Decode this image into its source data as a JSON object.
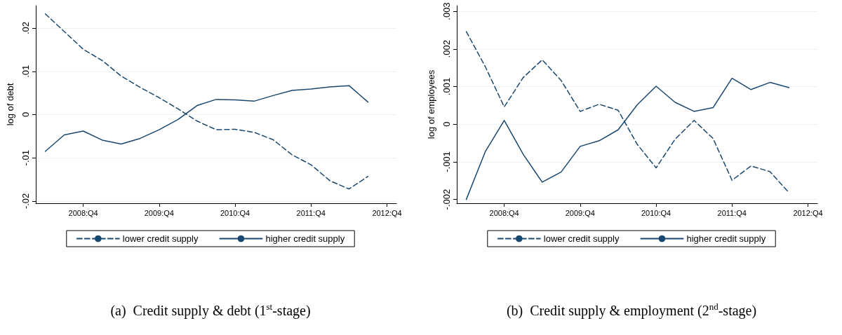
{
  "chart_data": [
    {
      "type": "line",
      "title": "(a)  Credit supply & debt (1$^{st}$-stage)",
      "ylabel": "log of debt",
      "categories": [
        null,
        null,
        "2008:Q4",
        null,
        null,
        null,
        "2009:Q4",
        null,
        null,
        null,
        "2010:Q4",
        null,
        null,
        null,
        "2011:Q4",
        null,
        null,
        null,
        "2012:Q4"
      ],
      "series": [
        {
          "name": "lower credit supply",
          "color": "#1a476f",
          "line_style": "dashed",
          "values": [
            0.0233,
            0.0192,
            0.0151,
            0.0125,
            0.0089,
            0.0063,
            0.0039,
            0.0013,
            -0.0015,
            -0.0035,
            -0.0034,
            -0.0041,
            -0.0058,
            -0.0093,
            -0.0116,
            -0.0153,
            -0.0172,
            -0.0143,
            null
          ]
        },
        {
          "name": "higher credit supply",
          "color": "#1a476f",
          "line_style": "solid",
          "values": [
            -0.0085,
            -0.0047,
            -0.0038,
            -0.0059,
            -0.0068,
            -0.0055,
            -0.0035,
            -0.0011,
            0.0021,
            0.0035,
            0.0034,
            0.0031,
            0.0044,
            0.0056,
            0.0059,
            0.0064,
            0.0067,
            0.0029,
            null
          ]
        }
      ],
      "ylim": [
        -0.0205,
        0.0252
      ],
      "yticks": [
        {
          "value": -0.02,
          "label": "-.02"
        },
        {
          "value": -0.01,
          "label": "-.01"
        },
        0,
        {
          "value": 0.01,
          "label": ".01"
        },
        {
          "value": 0.02,
          "label": ".02"
        }
      ],
      "grid": "y",
      "legend": "bottom",
      "marker": "none"
    },
    {
      "type": "line",
      "title": "(b)  Credit supply & employment (2$^{nd}$-stage)",
      "ylabel": "log of employees",
      "categories": [
        null,
        null,
        "2008:Q4",
        null,
        null,
        null,
        "2009:Q4",
        null,
        null,
        null,
        "2010:Q4",
        null,
        null,
        null,
        "2011:Q4",
        null,
        null,
        null,
        "2012:Q4"
      ],
      "series": [
        {
          "name": "lower credit supply",
          "color": "#1a476f",
          "line_style": "dashed",
          "values": [
            0.00246,
            0.00153,
            0.00046,
            0.00124,
            0.00171,
            0.00116,
            0.00034,
            0.00053,
            0.00037,
            -0.00053,
            -0.00116,
            -0.0004,
            0.0001,
            -0.00038,
            -0.00149,
            -0.00111,
            -0.00126,
            -0.00182,
            null
          ]
        },
        {
          "name": "higher credit supply",
          "color": "#1a476f",
          "line_style": "solid",
          "values": [
            -0.002,
            -0.00073,
            0.0001,
            -0.0008,
            -0.00154,
            -0.00127,
            -0.00059,
            -0.00044,
            -0.00015,
            0.00051,
            0.00101,
            0.00058,
            0.00034,
            0.00044,
            0.00122,
            0.00092,
            0.00111,
            0.00097,
            null
          ]
        }
      ],
      "ylim": [
        -0.0021,
        0.00315
      ],
      "yticks": [
        {
          "value": -0.002,
          "label": "-.002"
        },
        {
          "value": -0.001,
          "label": "-.001"
        },
        0,
        {
          "value": 0.001,
          "label": ".001"
        },
        {
          "value": 0.002,
          "label": ".002"
        },
        {
          "value": 0.003,
          "label": ".003"
        }
      ],
      "grid": "y",
      "legend": "bottom",
      "marker": "none"
    }
  ]
}
